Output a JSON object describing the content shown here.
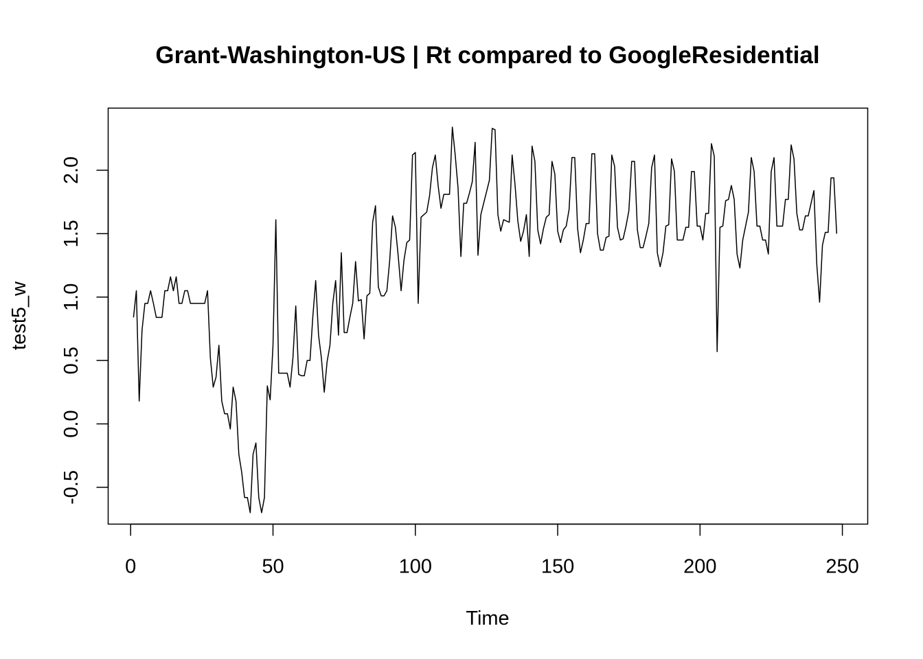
{
  "chart_data": {
    "type": "line",
    "title": "Grant-Washington-US | Rt compared to GoogleResidential",
    "xlabel": "Time",
    "ylabel": "test5_w",
    "xlim": [
      -7.9,
      258.9
    ],
    "ylim": [
      -0.79,
      2.49
    ],
    "xticks": [
      0,
      50,
      100,
      150,
      200,
      250
    ],
    "xtick_labels": [
      "0",
      "50",
      "100",
      "150",
      "200",
      "250"
    ],
    "yticks": [
      -0.5,
      0.0,
      0.5,
      1.0,
      1.5,
      2.0
    ],
    "ytick_labels": [
      "-0.5",
      "0.0",
      "0.5",
      "1.0",
      "1.5",
      "2.0"
    ],
    "grid": false,
    "legend": "none",
    "line_color": "#000000",
    "series": [
      {
        "x": [
          1,
          2,
          3,
          4,
          5,
          6,
          7,
          8,
          9,
          10,
          11,
          12,
          13,
          14,
          15,
          16,
          17,
          18,
          19,
          20,
          21,
          22,
          23,
          24,
          25,
          26,
          27,
          28,
          29,
          30,
          31,
          32,
          33,
          34,
          35,
          36,
          37,
          38,
          39,
          40,
          41,
          42,
          43,
          44,
          45,
          46,
          47,
          48,
          49,
          50,
          51,
          52,
          53,
          54,
          55,
          56,
          57,
          58,
          59,
          60,
          61,
          62,
          63,
          64,
          65,
          66,
          67,
          68,
          69,
          70,
          71,
          72,
          73,
          74,
          75,
          76,
          77,
          78,
          79,
          80,
          81,
          82,
          83,
          84,
          85,
          86,
          87,
          88,
          89,
          90,
          91,
          92,
          93,
          94,
          95,
          96,
          97,
          98,
          99,
          100,
          101,
          102,
          103,
          104,
          105,
          106,
          107,
          108,
          109,
          110,
          111,
          112,
          113,
          114,
          115,
          116,
          117,
          118,
          119,
          120,
          121,
          122,
          123,
          124,
          125,
          126,
          127,
          128,
          129,
          130,
          131,
          132,
          133,
          134,
          135,
          136,
          137,
          138,
          139,
          140,
          141,
          142,
          143,
          144,
          145,
          146,
          147,
          148,
          149,
          150,
          151,
          152,
          153,
          154,
          155,
          156,
          157,
          158,
          159,
          160,
          161,
          162,
          163,
          164,
          165,
          166,
          167,
          168,
          169,
          170,
          171,
          172,
          173,
          174,
          175,
          176,
          177,
          178,
          179,
          180,
          181,
          182,
          183,
          184,
          185,
          186,
          187,
          188,
          189,
          190,
          191,
          192,
          193,
          194,
          195,
          196,
          197,
          198,
          199,
          200,
          201,
          202,
          203,
          204,
          205,
          206,
          207,
          208,
          209,
          210,
          211,
          212,
          213,
          214,
          215,
          216,
          217,
          218,
          219,
          220,
          221,
          222,
          223,
          224,
          225,
          226,
          227,
          228,
          229,
          230,
          231,
          232,
          233,
          234,
          235,
          236,
          237,
          238,
          239,
          240,
          241,
          242,
          243,
          244,
          245,
          246,
          247,
          248
        ],
        "y": [
          0.84,
          1.05,
          0.18,
          0.74,
          0.95,
          0.95,
          1.05,
          0.95,
          0.84,
          0.84,
          0.84,
          1.05,
          1.05,
          1.16,
          1.05,
          1.16,
          0.95,
          0.95,
          1.05,
          1.05,
          0.95,
          0.95,
          0.95,
          0.95,
          0.95,
          0.95,
          1.05,
          0.52,
          0.29,
          0.37,
          0.62,
          0.18,
          0.08,
          0.08,
          -0.04,
          0.29,
          0.18,
          -0.24,
          -0.38,
          -0.58,
          -0.58,
          -0.7,
          -0.24,
          -0.15,
          -0.58,
          -0.7,
          -0.58,
          0.3,
          0.19,
          0.62,
          1.61,
          0.4,
          0.4,
          0.4,
          0.4,
          0.29,
          0.52,
          0.93,
          0.39,
          0.38,
          0.38,
          0.5,
          0.5,
          0.85,
          1.13,
          0.7,
          0.52,
          0.25,
          0.49,
          0.62,
          0.95,
          1.13,
          0.7,
          1.35,
          0.72,
          0.72,
          0.84,
          0.95,
          1.28,
          0.97,
          0.98,
          0.67,
          1.01,
          1.03,
          1.59,
          1.72,
          1.08,
          1.01,
          1.01,
          1.05,
          1.29,
          1.64,
          1.55,
          1.32,
          1.05,
          1.29,
          1.43,
          1.45,
          2.12,
          2.14,
          0.95,
          1.63,
          1.65,
          1.67,
          1.8,
          2.02,
          2.12,
          1.88,
          1.7,
          1.81,
          1.81,
          1.81,
          2.34,
          2.12,
          1.86,
          1.32,
          1.74,
          1.74,
          1.82,
          1.91,
          2.22,
          1.33,
          1.65,
          1.74,
          1.83,
          1.92,
          2.33,
          2.32,
          1.65,
          1.52,
          1.61,
          1.6,
          1.59,
          2.12,
          1.89,
          1.6,
          1.44,
          1.52,
          1.65,
          1.32,
          2.19,
          2.07,
          1.53,
          1.42,
          1.54,
          1.63,
          1.65,
          2.07,
          1.97,
          1.52,
          1.43,
          1.53,
          1.56,
          1.69,
          2.1,
          2.1,
          1.54,
          1.35,
          1.45,
          1.58,
          1.58,
          2.13,
          2.13,
          1.5,
          1.37,
          1.37,
          1.47,
          1.48,
          2.12,
          2.03,
          1.55,
          1.45,
          1.46,
          1.56,
          1.68,
          2.07,
          2.07,
          1.53,
          1.39,
          1.39,
          1.48,
          1.58,
          2.02,
          2.12,
          1.35,
          1.24,
          1.35,
          1.56,
          1.57,
          2.09,
          1.99,
          1.45,
          1.45,
          1.45,
          1.55,
          1.55,
          1.99,
          1.99,
          1.56,
          1.56,
          1.45,
          1.66,
          1.66,
          2.21,
          2.11,
          0.57,
          1.55,
          1.56,
          1.76,
          1.77,
          1.88,
          1.77,
          1.34,
          1.23,
          1.45,
          1.56,
          1.67,
          2.1,
          1.99,
          1.56,
          1.56,
          1.45,
          1.45,
          1.34,
          1.99,
          2.1,
          1.56,
          1.56,
          1.56,
          1.77,
          1.77,
          2.2,
          2.09,
          1.66,
          1.53,
          1.53,
          1.64,
          1.64,
          1.74,
          1.84,
          1.26,
          0.96,
          1.41,
          1.51,
          1.51,
          1.94,
          1.94,
          1.5
        ]
      }
    ]
  }
}
